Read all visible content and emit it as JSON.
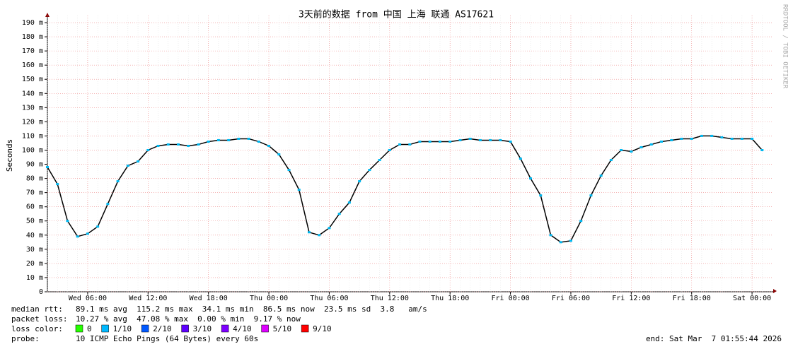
{
  "chart_data": {
    "type": "line",
    "title": "3天前的数据 from 中国 上海 联通 AS17621",
    "y_label": "Seconds",
    "credit": "RRDTOOL / TOBI OETIKER",
    "x": [
      "Wed 02:00",
      "Wed 03:00",
      "Wed 04:00",
      "Wed 05:00",
      "Wed 06:00",
      "Wed 07:00",
      "Wed 08:00",
      "Wed 09:00",
      "Wed 10:00",
      "Wed 11:00",
      "Wed 12:00",
      "Wed 13:00",
      "Wed 14:00",
      "Wed 15:00",
      "Wed 16:00",
      "Wed 17:00",
      "Wed 18:00",
      "Wed 19:00",
      "Wed 20:00",
      "Wed 21:00",
      "Wed 22:00",
      "Wed 23:00",
      "Thu 00:00",
      "Thu 01:00",
      "Thu 02:00",
      "Thu 03:00",
      "Thu 04:00",
      "Thu 05:00",
      "Thu 06:00",
      "Thu 07:00",
      "Thu 08:00",
      "Thu 09:00",
      "Thu 10:00",
      "Thu 11:00",
      "Thu 12:00",
      "Thu 13:00",
      "Thu 14:00",
      "Thu 15:00",
      "Thu 16:00",
      "Thu 17:00",
      "Thu 18:00",
      "Thu 19:00",
      "Thu 20:00",
      "Thu 21:00",
      "Thu 22:00",
      "Thu 23:00",
      "Fri 00:00",
      "Fri 01:00",
      "Fri 02:00",
      "Fri 03:00",
      "Fri 04:00",
      "Fri 05:00",
      "Fri 06:00",
      "Fri 07:00",
      "Fri 08:00",
      "Fri 09:00",
      "Fri 10:00",
      "Fri 11:00",
      "Fri 12:00",
      "Fri 13:00",
      "Fri 14:00",
      "Fri 15:00",
      "Fri 16:00",
      "Fri 17:00",
      "Fri 18:00",
      "Fri 19:00",
      "Fri 20:00",
      "Fri 21:00",
      "Fri 22:00",
      "Fri 23:00",
      "Sat 00:00",
      "Sat 01:00"
    ],
    "series": [
      {
        "name": "median rtt",
        "color": "#00b8f0",
        "values": [
          0.088,
          0.076,
          0.05,
          0.039,
          0.041,
          0.046,
          0.062,
          0.078,
          0.089,
          0.092,
          0.1,
          0.103,
          0.104,
          0.104,
          0.103,
          0.104,
          0.106,
          0.107,
          0.107,
          0.108,
          0.108,
          0.106,
          0.103,
          0.097,
          0.086,
          0.072,
          0.042,
          0.04,
          0.045,
          0.055,
          0.063,
          0.078,
          0.086,
          0.093,
          0.1,
          0.104,
          0.104,
          0.106,
          0.106,
          0.106,
          0.106,
          0.107,
          0.108,
          0.107,
          0.107,
          0.107,
          0.106,
          0.094,
          0.08,
          0.068,
          0.04,
          0.035,
          0.036,
          0.05,
          0.068,
          0.082,
          0.093,
          0.1,
          0.099,
          0.102,
          0.104,
          0.106,
          0.107,
          0.108,
          0.108,
          0.11,
          0.11,
          0.109,
          0.108,
          0.108,
          0.108,
          0.1
        ]
      }
    ],
    "xticks": [
      "Wed 06:00",
      "Wed 12:00",
      "Wed 18:00",
      "Thu 00:00",
      "Thu 06:00",
      "Thu 12:00",
      "Thu 18:00",
      "Fri 00:00",
      "Fri 06:00",
      "Fri 12:00",
      "Fri 18:00",
      "Sat 00:00"
    ],
    "ylim": [
      0,
      0.195
    ],
    "yticks": [
      0,
      {
        "value": 0.01,
        "label": "10 m"
      },
      {
        "value": 0.02,
        "label": "20 m"
      },
      {
        "value": 0.03,
        "label": "30 m"
      },
      {
        "value": 0.04,
        "label": "40 m"
      },
      {
        "value": 0.05,
        "label": "50 m"
      },
      {
        "value": 0.06,
        "label": "60 m"
      },
      {
        "value": 0.07,
        "label": "70 m"
      },
      {
        "value": 0.08,
        "label": "80 m"
      },
      {
        "value": 0.09,
        "label": "90 m"
      },
      {
        "value": 0.1,
        "label": "100 m"
      },
      {
        "value": 0.11,
        "label": "110 m"
      },
      {
        "value": 0.12,
        "label": "120 m"
      },
      {
        "value": 0.13,
        "label": "130 m"
      },
      {
        "value": 0.14,
        "label": "140 m"
      },
      {
        "value": 0.15,
        "label": "150 m"
      },
      {
        "value": 0.16,
        "label": "160 m"
      },
      {
        "value": 0.17,
        "label": "170 m"
      },
      {
        "value": 0.18,
        "label": "180 m"
      },
      {
        "value": 0.19,
        "label": "190 m"
      }
    ],
    "grid": true,
    "stats": [
      {
        "label": "median rtt:",
        "text": "89.1 ms avg  115.2 ms max  34.1 ms min  86.5 ms now  23.5 ms sd  3.8   am/s"
      },
      {
        "label": "packet loss:",
        "text": "10.27 % avg  47.08 % max  0.00 % min  9.17 % now"
      }
    ],
    "loss_title": "loss color:",
    "loss_colors": [
      {
        "label": "0",
        "color": "#26ff00"
      },
      {
        "label": "1/10",
        "color": "#00b8ff"
      },
      {
        "label": "2/10",
        "color": "#0059ff"
      },
      {
        "label": "3/10",
        "color": "#5e00ff"
      },
      {
        "label": "4/10",
        "color": "#7e00ff"
      },
      {
        "label": "5/10",
        "color": "#dd00ff"
      },
      {
        "label": "9/10",
        "color": "#ff0000"
      }
    ],
    "probe_label": "probe:",
    "probe_text": "10 ICMP Echo Pings (64 Bytes) every 60s",
    "end_text": "end: Sat Mar  7 01:55:44 2026"
  }
}
